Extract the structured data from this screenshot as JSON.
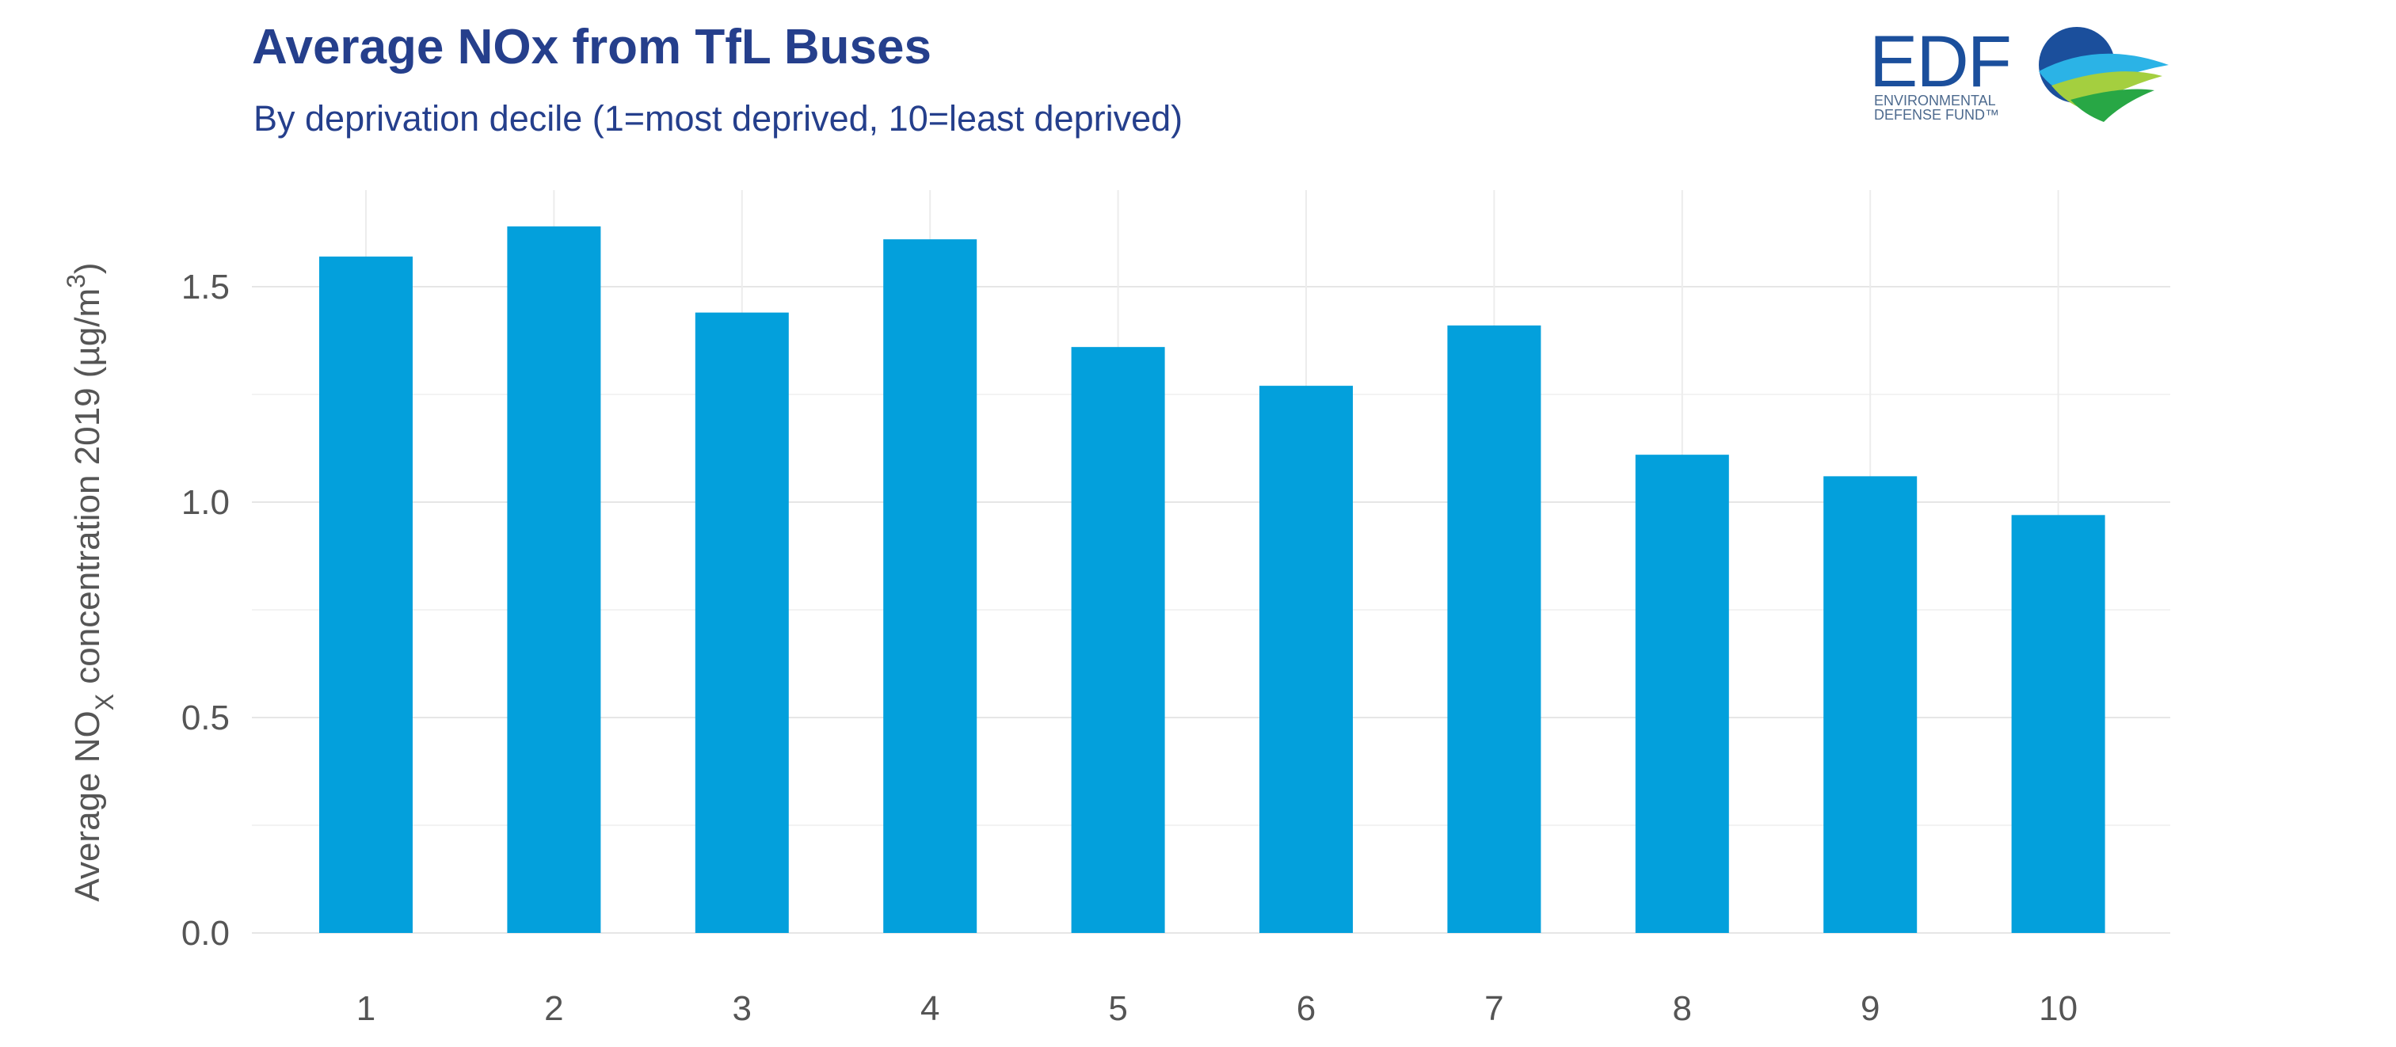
{
  "header": {
    "title": "Average NOx from TfL Buses",
    "subtitle": "By deprivation decile (1=most deprived, 10=least deprived)"
  },
  "logo": {
    "wordmark": "EDF",
    "line1": "ENVIRONMENTAL",
    "line2": "DEFENSE FUND™",
    "colors": [
      "#1b4f9c",
      "#28a745",
      "#a4cf3f",
      "#2bb3e6"
    ]
  },
  "chart_data": {
    "type": "bar",
    "title": "Average NOx from TfL Buses",
    "subtitle": "By deprivation decile (1=most deprived, 10=least deprived)",
    "xlabel": "",
    "ylabel": "Average NOx concentration 2019 (µg/m3)",
    "categories": [
      "1",
      "2",
      "3",
      "4",
      "5",
      "6",
      "7",
      "8",
      "9",
      "10"
    ],
    "values": [
      1.57,
      1.64,
      1.44,
      1.61,
      1.36,
      1.27,
      1.41,
      1.11,
      1.06,
      0.97
    ],
    "ylim": [
      0,
      1.7
    ],
    "yticks": [
      "0.0",
      "0.5",
      "1.0",
      "1.5"
    ],
    "ytick_values": [
      0,
      0.5,
      1.0,
      1.5
    ],
    "bar_color": "#03a0dc",
    "grid": true,
    "legend": "none"
  }
}
